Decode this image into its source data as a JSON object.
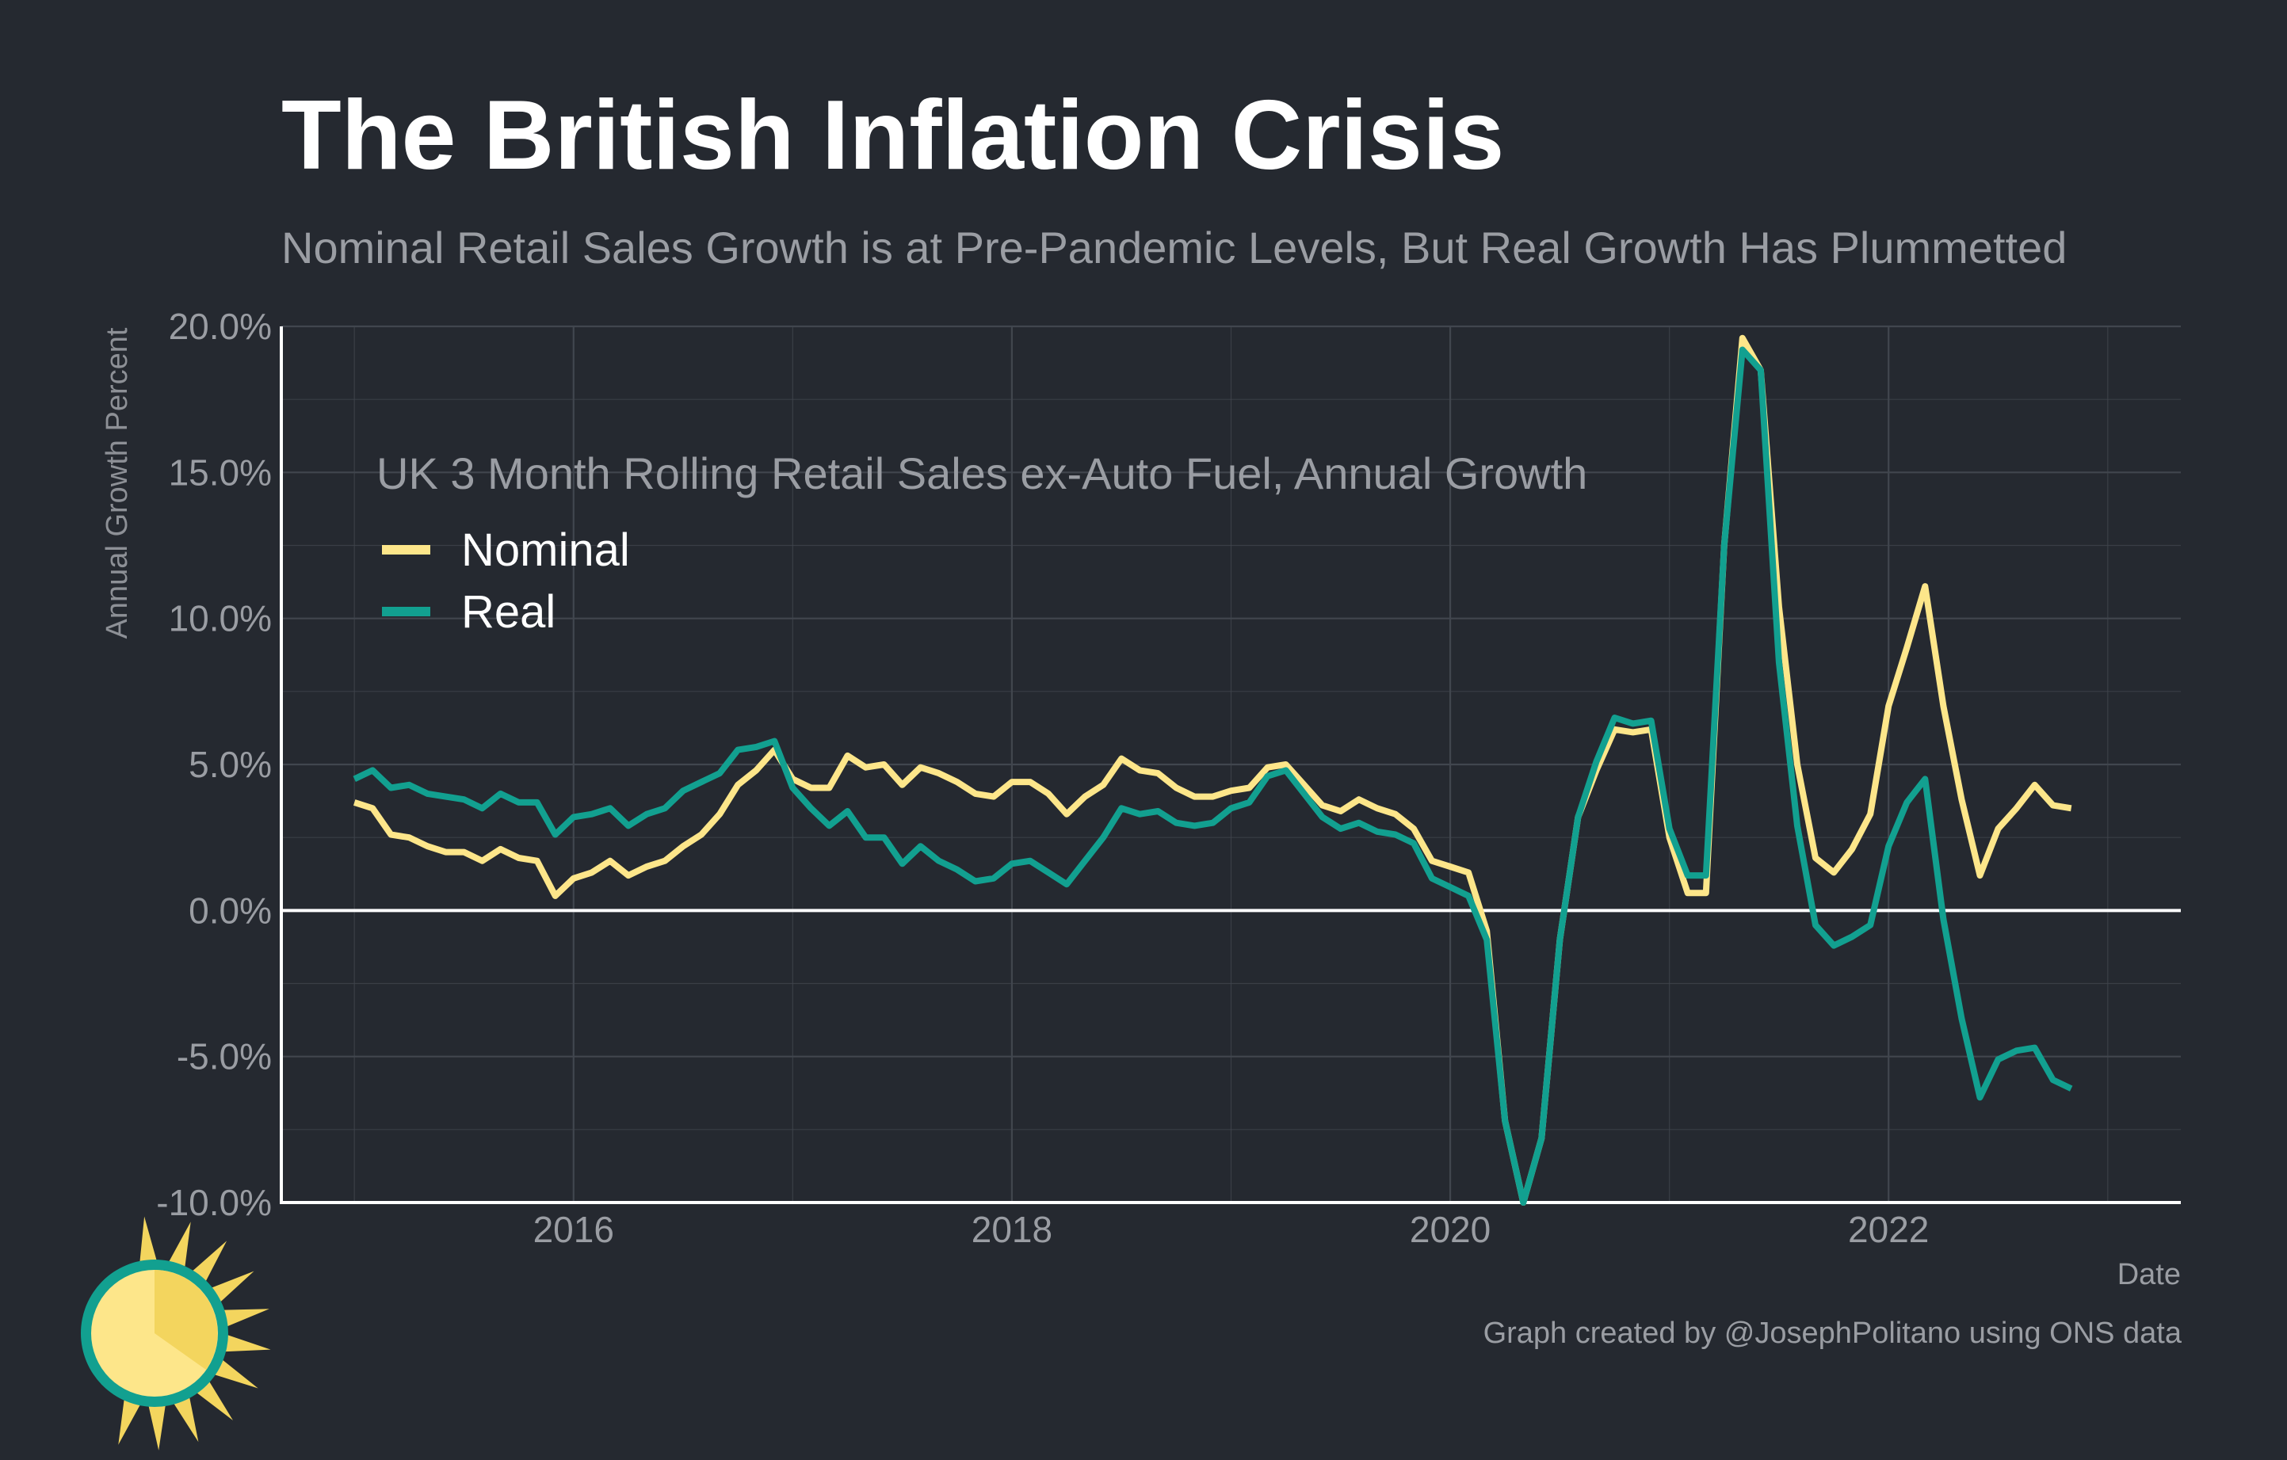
{
  "chart_data": {
    "type": "line",
    "title": "The British Inflation Crisis",
    "subtitle": "Nominal Retail Sales Growth is at Pre-Pandemic Levels, But Real Growth Has Plummetted",
    "xlabel": "Date",
    "ylabel": "Annual Growth Percent",
    "xlim": [
      "2014-09",
      "2023-05"
    ],
    "ylim": [
      -10,
      20
    ],
    "y_ticks": [
      -10,
      -5,
      0,
      5,
      10,
      15,
      20
    ],
    "y_tick_labels": [
      "-10.0%",
      "-5.0%",
      "0.0%",
      "5.0%",
      "10.0%",
      "15.0%",
      "20.0%"
    ],
    "x_ticks": [
      "2016-01",
      "2018-01",
      "2020-01",
      "2022-01"
    ],
    "x_tick_labels": [
      "2016",
      "2018",
      "2020",
      "2022"
    ],
    "grid": true,
    "legend": {
      "title": "UK 3 Month Rolling Retail Sales ex-Auto Fuel, Annual Growth",
      "placement": "top-left"
    },
    "start_month": "2015-01",
    "series": [
      {
        "name": "Nominal",
        "color": "#fde68a",
        "values": [
          3.7,
          3.5,
          2.6,
          2.5,
          2.2,
          2.0,
          2.0,
          1.7,
          2.1,
          1.8,
          1.7,
          0.5,
          1.1,
          1.3,
          1.7,
          1.2,
          1.5,
          1.7,
          2.2,
          2.6,
          3.3,
          4.3,
          4.8,
          5.5,
          4.5,
          4.2,
          4.2,
          5.3,
          4.9,
          5.0,
          4.3,
          4.9,
          4.7,
          4.4,
          4.0,
          3.9,
          4.4,
          4.4,
          4.0,
          3.3,
          3.9,
          4.3,
          5.2,
          4.8,
          4.7,
          4.2,
          3.9,
          3.9,
          4.1,
          4.2,
          4.9,
          5.0,
          4.3,
          3.6,
          3.4,
          3.8,
          3.5,
          3.3,
          2.8,
          1.7,
          1.5,
          1.3,
          -0.7,
          -7.2,
          -10.0,
          -7.8,
          -1.0,
          3.2,
          4.8,
          6.2,
          6.1,
          6.2,
          2.5,
          0.6,
          0.6,
          12.5,
          19.6,
          18.5,
          10.4,
          5.0,
          1.8,
          1.3,
          2.1,
          3.3,
          7.0,
          9.0,
          11.1,
          7.0,
          3.8,
          1.2,
          2.8,
          3.5,
          4.3,
          3.6,
          3.5
        ],
        "values_source": "read from chart"
      },
      {
        "name": "Real",
        "color": "#12a090",
        "values": [
          4.5,
          4.8,
          4.2,
          4.3,
          4.0,
          3.9,
          3.8,
          3.5,
          4.0,
          3.7,
          3.7,
          2.6,
          3.2,
          3.3,
          3.5,
          2.9,
          3.3,
          3.5,
          4.1,
          4.4,
          4.7,
          5.5,
          5.6,
          5.8,
          4.2,
          3.5,
          2.9,
          3.4,
          2.5,
          2.5,
          1.6,
          2.2,
          1.7,
          1.4,
          1.0,
          1.1,
          1.6,
          1.7,
          1.3,
          0.9,
          1.7,
          2.5,
          3.5,
          3.3,
          3.4,
          3.0,
          2.9,
          3.0,
          3.5,
          3.7,
          4.6,
          4.8,
          4.0,
          3.2,
          2.8,
          3.0,
          2.7,
          2.6,
          2.3,
          1.1,
          0.8,
          0.5,
          -1.0,
          -7.2,
          -10.0,
          -7.8,
          -1.0,
          3.2,
          5.1,
          6.6,
          6.4,
          6.5,
          2.8,
          1.2,
          1.2,
          12.5,
          19.2,
          18.5,
          8.5,
          2.9,
          -0.5,
          -1.2,
          -0.9,
          -0.5,
          2.2,
          3.7,
          4.5,
          -0.3,
          -3.7,
          -6.4,
          -5.1,
          -4.8,
          -4.7,
          -5.8,
          -6.1
        ]
      }
    ]
  },
  "caption": "Graph created by @JosephPolitano using ONS data",
  "colors": {
    "background": "#252930",
    "grid": "#41464e",
    "axis": "#ffffff",
    "muted_text": "#9a9da3",
    "logo_teal": "#12a090",
    "logo_yellow": "#fde68a"
  },
  "logo_icon": "sun-logo-icon"
}
